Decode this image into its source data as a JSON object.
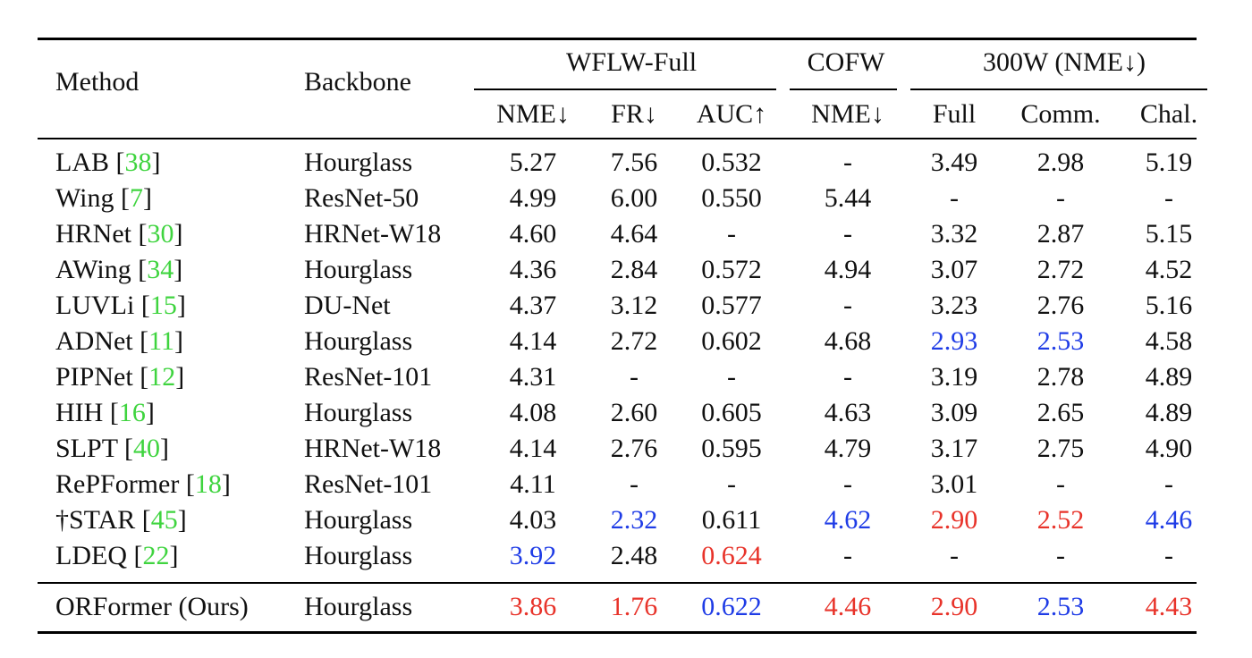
{
  "table": {
    "group_headers": {
      "method": "Method",
      "backbone": "Backbone",
      "wflw": "WFLW-Full",
      "cofw": "COFW",
      "w300": "300W (NME↓)"
    },
    "sub_headers": [
      "NME↓",
      "FR↓",
      "AUC↑",
      "NME↓",
      "Full",
      "Comm.",
      "Chal."
    ],
    "colors": {
      "best": "#e8332a",
      "second": "#1f3ce6",
      "cite": "#3fd43f",
      "text": "#111111"
    },
    "rows": [
      {
        "name": "LAB",
        "cite": "38",
        "backbone": "Hourglass",
        "vals": [
          "5.27",
          "7.56",
          "0.532",
          "-",
          "3.49",
          "2.98",
          "5.19"
        ],
        "hl": [
          "",
          "",
          "",
          "",
          "",
          "",
          ""
        ]
      },
      {
        "name": "Wing",
        "cite": "7",
        "backbone": "ResNet-50",
        "vals": [
          "4.99",
          "6.00",
          "0.550",
          "5.44",
          "-",
          "-",
          "-"
        ],
        "hl": [
          "",
          "",
          "",
          "",
          "",
          "",
          ""
        ]
      },
      {
        "name": "HRNet",
        "cite": "30",
        "backbone": "HRNet-W18",
        "vals": [
          "4.60",
          "4.64",
          "-",
          "-",
          "3.32",
          "2.87",
          "5.15"
        ],
        "hl": [
          "",
          "",
          "",
          "",
          "",
          "",
          ""
        ]
      },
      {
        "name": "AWing",
        "cite": "34",
        "backbone": "Hourglass",
        "vals": [
          "4.36",
          "2.84",
          "0.572",
          "4.94",
          "3.07",
          "2.72",
          "4.52"
        ],
        "hl": [
          "",
          "",
          "",
          "",
          "",
          "",
          ""
        ]
      },
      {
        "name": "LUVLi",
        "cite": "15",
        "backbone": "DU-Net",
        "vals": [
          "4.37",
          "3.12",
          "0.577",
          "-",
          "3.23",
          "2.76",
          "5.16"
        ],
        "hl": [
          "",
          "",
          "",
          "",
          "",
          "",
          ""
        ]
      },
      {
        "name": "ADNet",
        "cite": "11",
        "backbone": "Hourglass",
        "vals": [
          "4.14",
          "2.72",
          "0.602",
          "4.68",
          "2.93",
          "2.53",
          "4.58"
        ],
        "hl": [
          "",
          "",
          "",
          "",
          "blue",
          "blue",
          ""
        ]
      },
      {
        "name": "PIPNet",
        "cite": "12",
        "backbone": "ResNet-101",
        "vals": [
          "4.31",
          "-",
          "-",
          "-",
          "3.19",
          "2.78",
          "4.89"
        ],
        "hl": [
          "",
          "",
          "",
          "",
          "",
          "",
          ""
        ]
      },
      {
        "name": "HIH",
        "cite": "16",
        "backbone": "Hourglass",
        "vals": [
          "4.08",
          "2.60",
          "0.605",
          "4.63",
          "3.09",
          "2.65",
          "4.89"
        ],
        "hl": [
          "",
          "",
          "",
          "",
          "",
          "",
          ""
        ]
      },
      {
        "name": "SLPT",
        "cite": "40",
        "backbone": "HRNet-W18",
        "vals": [
          "4.14",
          "2.76",
          "0.595",
          "4.79",
          "3.17",
          "2.75",
          "4.90"
        ],
        "hl": [
          "",
          "",
          "",
          "",
          "",
          "",
          ""
        ]
      },
      {
        "name": "RePFormer",
        "cite": "18",
        "backbone": "ResNet-101",
        "vals": [
          "4.11",
          "-",
          "-",
          "-",
          "3.01",
          "-",
          "-"
        ],
        "hl": [
          "",
          "",
          "",
          "",
          "",
          "",
          ""
        ]
      },
      {
        "name": "†STAR",
        "cite": "45",
        "backbone": "Hourglass",
        "vals": [
          "4.03",
          "2.32",
          "0.611",
          "4.62",
          "2.90",
          "2.52",
          "4.46"
        ],
        "hl": [
          "",
          "blue",
          "",
          "blue",
          "red",
          "red",
          "blue"
        ]
      },
      {
        "name": "LDEQ",
        "cite": "22",
        "backbone": "Hourglass",
        "vals": [
          "3.92",
          "2.48",
          "0.624",
          "-",
          "-",
          "-",
          "-"
        ],
        "hl": [
          "blue",
          "",
          "red",
          "",
          "",
          "",
          ""
        ]
      }
    ],
    "ours": {
      "name": "ORFormer (Ours)",
      "backbone": "Hourglass",
      "vals": [
        "3.86",
        "1.76",
        "0.622",
        "4.46",
        "2.90",
        "2.53",
        "4.43"
      ],
      "hl": [
        "red",
        "red",
        "blue",
        "red",
        "red",
        "blue",
        "red"
      ]
    }
  }
}
